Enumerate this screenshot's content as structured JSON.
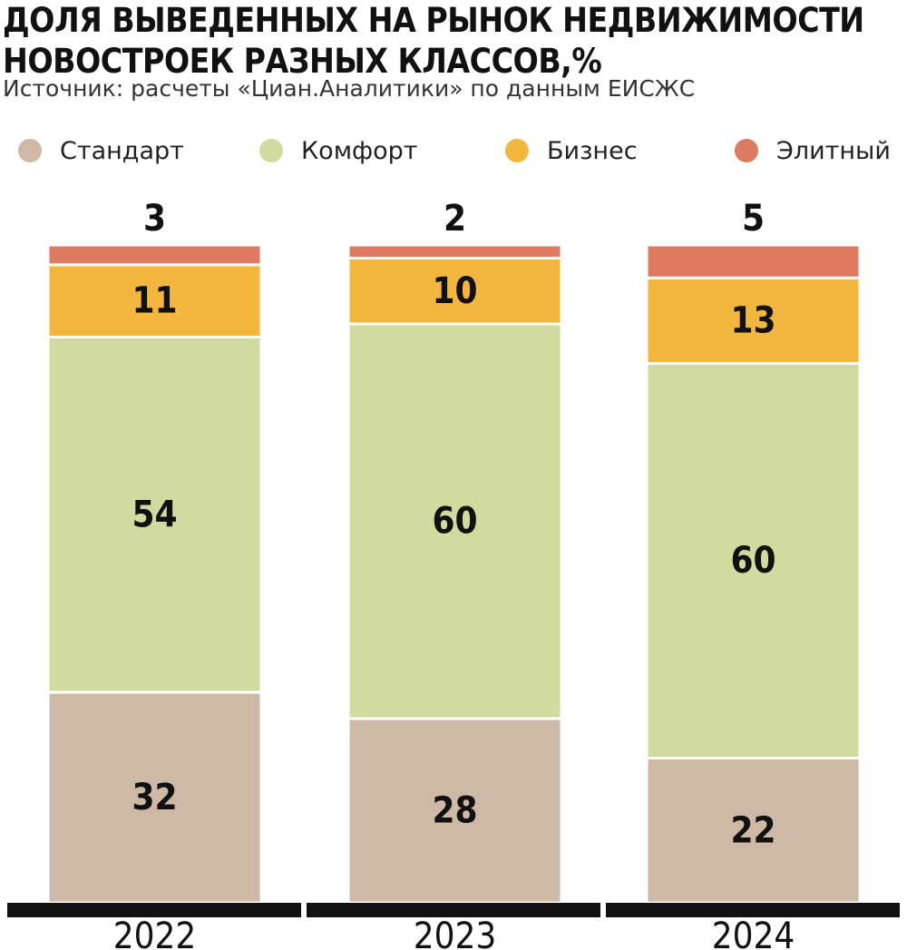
{
  "header": {
    "title": "ДОЛЯ ВЫВЕДЕННЫХ НА РЫНОК НЕДВИЖИМОСТИ НОВОСТРОЕК РАЗНЫХ КЛАССОВ,%",
    "source": "Источник: расчеты «Циан.Аналитики» по данным ЕИСЖС"
  },
  "chart_data": {
    "type": "bar",
    "stacked": true,
    "title": "ДОЛЯ ВЫВЕДЕННЫХ НА РЫНОК НЕДВИЖИМОСТИ НОВОСТРОЕК РАЗНЫХ КЛАССОВ,%",
    "categories": [
      "2022",
      "2023",
      "2024"
    ],
    "series": [
      {
        "name": "Стандарт",
        "color": "#cdb9a5",
        "values": [
          32,
          28,
          22
        ]
      },
      {
        "name": "Комфорт",
        "color": "#d1dba0",
        "values": [
          54,
          60,
          60
        ]
      },
      {
        "name": "Бизнес",
        "color": "#f3b73f",
        "values": [
          11,
          10,
          13
        ]
      },
      {
        "name": "Элитный",
        "color": "#dc7b62",
        "values": [
          3,
          2,
          5
        ]
      }
    ],
    "legend_position": "top",
    "grid": false,
    "ylim": [
      0,
      100
    ]
  }
}
